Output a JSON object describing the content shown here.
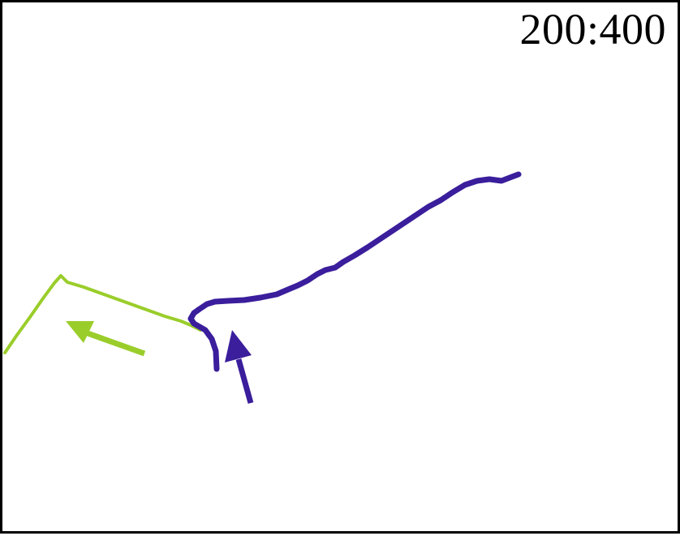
{
  "ratio_label": "200:400",
  "colors": {
    "green_track": "#9ACD2A",
    "purple_track": "#3A1E9C",
    "border": "#000000",
    "background": "#ffffff"
  },
  "icons": {
    "green_arrow": "arrow-left-up",
    "purple_arrow": "arrow-up"
  }
}
